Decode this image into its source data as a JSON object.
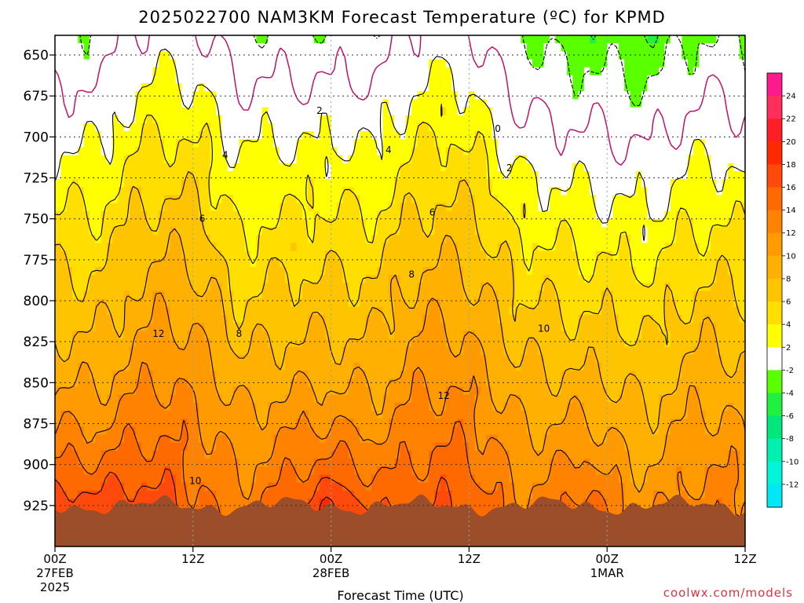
{
  "chart_data": {
    "type": "heatmap",
    "title": "2025022700 NAM3KM Forecast Temperature (ºC) for KPMD",
    "xlabel": "Forecast Time (UTC)",
    "ylabel": "",
    "y_axis": {
      "unit": "hPa",
      "ticks": [
        650,
        675,
        700,
        725,
        750,
        775,
        800,
        825,
        850,
        875,
        900,
        925
      ],
      "range": [
        638,
        950
      ],
      "inverted": true
    },
    "x_axis": {
      "unit": "hours from 00Z 27FEB2025",
      "range": [
        0,
        60
      ],
      "ticks": [
        {
          "hour": 0,
          "label": "00Z",
          "sub1": "27FEB",
          "sub2": "2025"
        },
        {
          "hour": 12,
          "label": "12Z",
          "sub1": "",
          "sub2": ""
        },
        {
          "hour": 24,
          "label": "00Z",
          "sub1": "28FEB",
          "sub2": ""
        },
        {
          "hour": 36,
          "label": "12Z",
          "sub1": "",
          "sub2": ""
        },
        {
          "hour": 48,
          "label": "00Z",
          "sub1": "1MAR",
          "sub2": ""
        },
        {
          "hour": 60,
          "label": "12Z",
          "sub1": "",
          "sub2": ""
        }
      ]
    },
    "grid": true,
    "legend": "right colorbar",
    "colorbar": {
      "unit": "ºC",
      "labels": [
        24,
        22,
        20,
        18,
        16,
        14,
        12,
        10,
        8,
        6,
        4,
        2,
        -2,
        -4,
        -6,
        -8,
        -10,
        -12
      ],
      "bins": [
        {
          "from": 26,
          "to": 24,
          "color": "#ff1a8c"
        },
        {
          "from": 24,
          "to": 22,
          "color": "#ff2e5a"
        },
        {
          "from": 22,
          "to": 20,
          "color": "#ff1e26"
        },
        {
          "from": 20,
          "to": 18,
          "color": "#ff2a00"
        },
        {
          "from": 18,
          "to": 16,
          "color": "#ff4a0c"
        },
        {
          "from": 16,
          "to": 14,
          "color": "#ff6a00"
        },
        {
          "from": 14,
          "to": 12,
          "color": "#ff8200"
        },
        {
          "from": 12,
          "to": 10,
          "color": "#ff9a00"
        },
        {
          "from": 10,
          "to": 8,
          "color": "#ffb000"
        },
        {
          "from": 8,
          "to": 6,
          "color": "#ffc400"
        },
        {
          "from": 6,
          "to": 4,
          "color": "#ffde00"
        },
        {
          "from": 4,
          "to": 2,
          "color": "#ffff00"
        },
        {
          "from": 2,
          "to": -2,
          "color": "#ffffff"
        },
        {
          "from": -2,
          "to": -4,
          "color": "#5aff00"
        },
        {
          "from": -4,
          "to": -6,
          "color": "#20f040"
        },
        {
          "from": -6,
          "to": -8,
          "color": "#00e87a"
        },
        {
          "from": -8,
          "to": -10,
          "color": "#00f0b0"
        },
        {
          "from": -10,
          "to": -12,
          "color": "#00f5d8"
        },
        {
          "from": -12,
          "to": -14,
          "color": "#00e8f5"
        }
      ]
    },
    "ground_color": "#9c4e2a",
    "contour_labels": [
      {
        "value": "2",
        "hour": 23.0,
        "p": 684
      },
      {
        "value": "0",
        "hour": 38.5,
        "p": 695
      },
      {
        "value": "2",
        "hour": 39.5,
        "p": 719
      },
      {
        "value": "4",
        "hour": 14.8,
        "p": 711
      },
      {
        "value": "4",
        "hour": 29.0,
        "p": 708
      },
      {
        "value": "6",
        "hour": 12.8,
        "p": 750
      },
      {
        "value": "6",
        "hour": 32.8,
        "p": 746
      },
      {
        "value": "8",
        "hour": 31.0,
        "p": 784
      },
      {
        "value": "8",
        "hour": 16.0,
        "p": 820
      },
      {
        "value": "10",
        "hour": 42.5,
        "p": 817
      },
      {
        "value": "12",
        "hour": 9.0,
        "p": 820
      },
      {
        "value": "12",
        "hour": 33.8,
        "p": 858
      },
      {
        "value": "10",
        "hour": 12.2,
        "p": 910
      }
    ]
  },
  "watermark": "coolwx.com/models"
}
